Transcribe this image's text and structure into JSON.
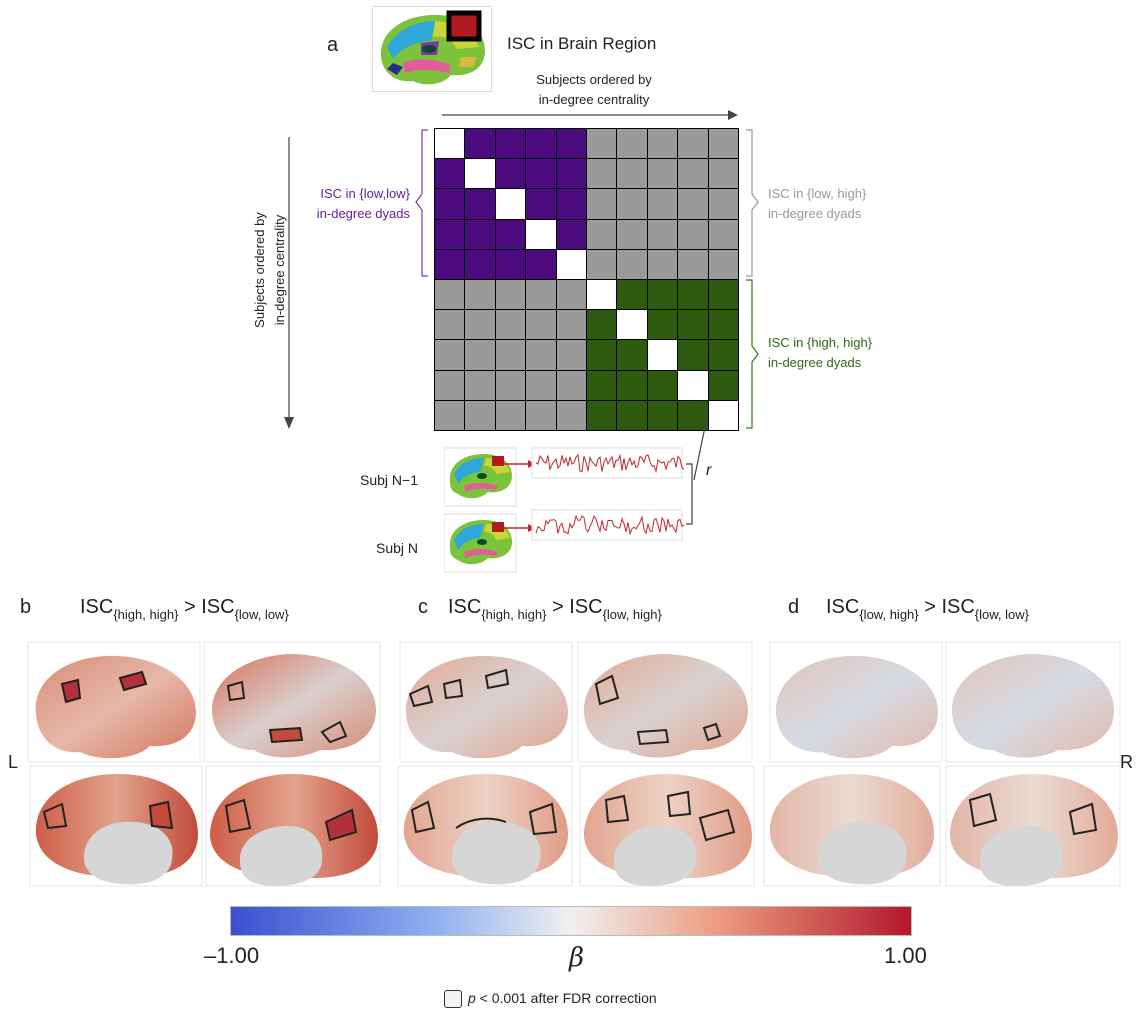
{
  "panel_a": {
    "letter": "a",
    "brain_region_title": "ISC in Brain Region",
    "top_axis": [
      "Subjects ordered by",
      "in-degree centrality"
    ],
    "left_axis": [
      "Subjects ordered by",
      "in-degree centrality"
    ],
    "label_low_low": [
      "ISC in {low,low}",
      "in-degree dyads"
    ],
    "label_low_high": [
      "ISC in {low, high}",
      "in-degree dyads"
    ],
    "label_high_high": [
      "ISC in {high, high}",
      "in-degree dyads"
    ],
    "subj_n_minus_1": "Subj N−1",
    "subj_n": "Subj N",
    "r_label": "r",
    "colors": {
      "low_low": "#4b0a7d",
      "low_high": "#9a9a9a",
      "high_high": "#2e5a10",
      "diag": "#ffffff",
      "trace": "#c1272d"
    }
  },
  "panel_b": {
    "letter": "b",
    "isc1": "ISC",
    "sub1": "{high, high}",
    "gt": ">",
    "isc2": "ISC",
    "sub2": "{low, low}"
  },
  "panel_c": {
    "letter": "c",
    "isc1": "ISC",
    "sub1": "{high, high}",
    "gt": ">",
    "isc2": "ISC",
    "sub2": "{low, high}"
  },
  "panel_d": {
    "letter": "d",
    "isc1": "ISC",
    "sub1": "{low, high}",
    "gt": ">",
    "isc2": "ISC",
    "sub2": "{low, low}"
  },
  "side_left": "L",
  "side_right": "R",
  "colorbar": {
    "min_label": "–1.00",
    "max_label": "1.00",
    "symbol": "β",
    "colors": [
      "#3a4fd0",
      "#f0f0f0",
      "#b2182b"
    ]
  },
  "legend": {
    "p": "p",
    "text": " < 0.001 after FDR correction"
  }
}
